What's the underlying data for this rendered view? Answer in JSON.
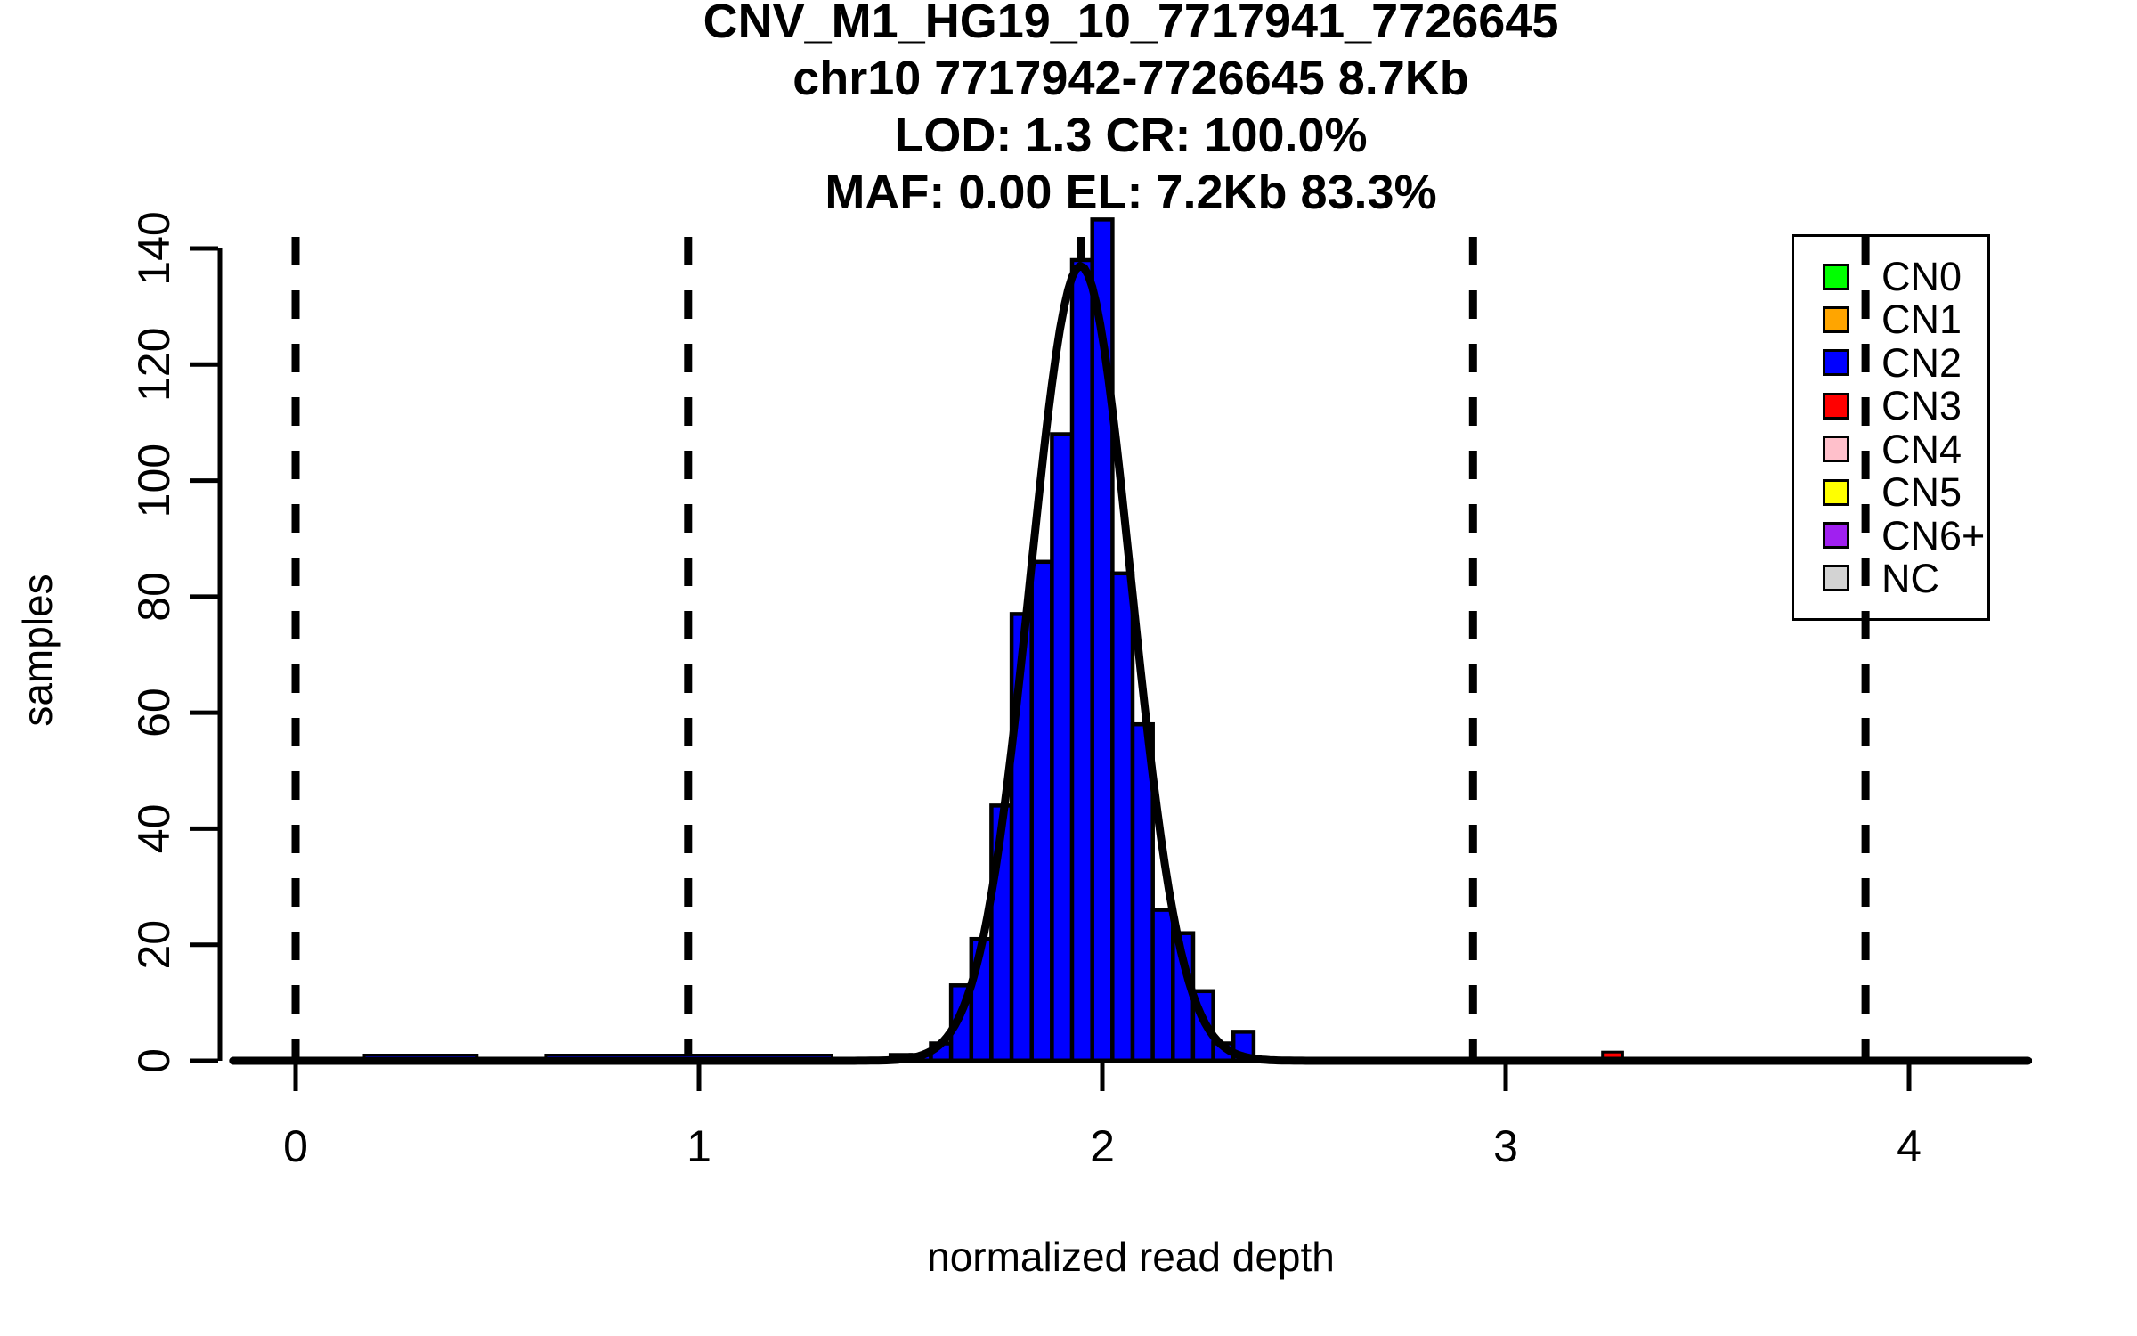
{
  "chart_data": {
    "type": "bar",
    "subtype": "histogram-with-fit-curve",
    "title_lines": [
      "CNV_M1_HG19_10_7717941_7726645",
      "chr10 7717942-7726645 8.7Kb",
      "LOD: 1.3 CR: 100.0%",
      "MAF: 0.00 EL: 7.2Kb 83.3%"
    ],
    "xlabel": "normalized read depth",
    "ylabel": "samples",
    "xlim": [
      -0.16,
      4.3
    ],
    "ylim": [
      0,
      145
    ],
    "x_ticks": [
      0,
      1,
      2,
      3,
      4
    ],
    "y_ticks": [
      0,
      20,
      40,
      60,
      80,
      100,
      120,
      140
    ],
    "grid": false,
    "histogram": {
      "cn": "CN2",
      "start": 1.475,
      "bin_width": 0.05,
      "counts": [
        1,
        1,
        3,
        13,
        21,
        44,
        77,
        86,
        108,
        138,
        145,
        84,
        58,
        26,
        22,
        12,
        3,
        5
      ]
    },
    "extra_bars": [
      {
        "cn": "CN3",
        "x0": 3.24,
        "width": 0.05,
        "count": 1.5
      }
    ],
    "tail_plateaus": [
      {
        "x0": 0.17,
        "x1": 0.45,
        "height": 1
      },
      {
        "x0": 0.62,
        "x1": 1.33,
        "height": 1
      }
    ],
    "dashed_lines_x": [
      0,
      0.973,
      1.946,
      2.919,
      3.892
    ],
    "gaussian_curve": {
      "center": 1.946,
      "sigma": 0.125,
      "amplitude": 137
    },
    "legend": {
      "position": "top-right",
      "items": [
        {
          "label": "CN0",
          "color": "#00FF00"
        },
        {
          "label": "CN1",
          "color": "#FFA500"
        },
        {
          "label": "CN2",
          "color": "#0000FF"
        },
        {
          "label": "CN3",
          "color": "#FF0000"
        },
        {
          "label": "CN4",
          "color": "#FFC0CB"
        },
        {
          "label": "CN5",
          "color": "#FFFF00"
        },
        {
          "label": "CN6+",
          "color": "#A020F0"
        },
        {
          "label": "NC",
          "color": "#D3D3D3"
        }
      ]
    },
    "colors": {
      "bar_fill": "#0000FF",
      "bar_border": "#000000",
      "curve": "#000000",
      "background": "#FFFFFF"
    }
  }
}
